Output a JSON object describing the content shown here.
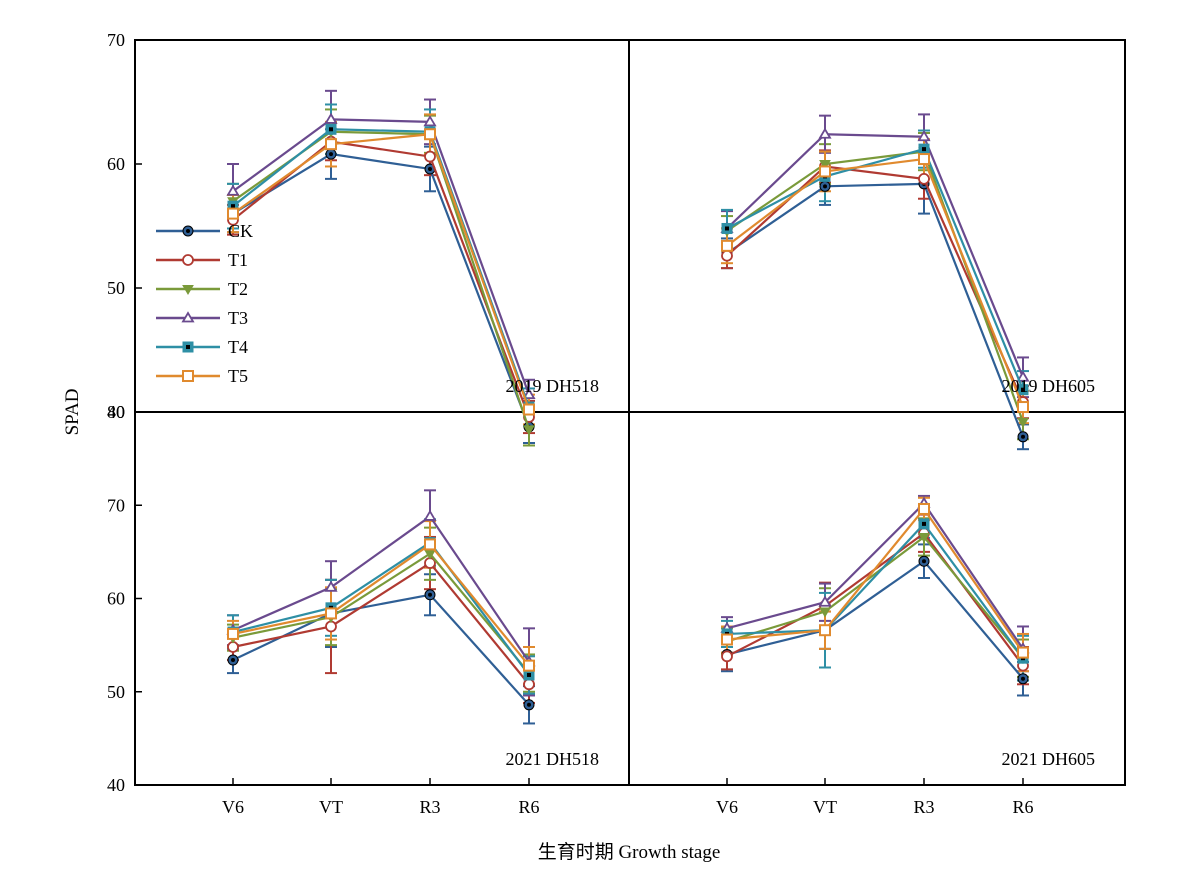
{
  "figure": {
    "ylabel": "SPAD",
    "xlabel": "生育时期 Growth stage",
    "top_y_ticks": [
      "70",
      "60",
      "50",
      "40"
    ],
    "bottom_y_ticks": [
      "80",
      "70",
      "60",
      "50",
      "40"
    ],
    "x_ticks": [
      "V6",
      "VT",
      "R3",
      "R6"
    ]
  },
  "series_styles": [
    {
      "name": "CK",
      "color": "#2f5f95",
      "marker": "dot"
    },
    {
      "name": "T1",
      "color": "#b03a32",
      "marker": "circle"
    },
    {
      "name": "T2",
      "color": "#7a9a3a",
      "marker": "triangle-down"
    },
    {
      "name": "T3",
      "color": "#6a4a8e",
      "marker": "triangle-up"
    },
    {
      "name": "T4",
      "color": "#2e8fa5",
      "marker": "square-filled"
    },
    {
      "name": "T5",
      "color": "#e08a2e",
      "marker": "square-open"
    }
  ],
  "chart_data": [
    {
      "type": "line",
      "title": "2019 DH518",
      "categories": [
        "V6",
        "VT",
        "R3",
        "R6"
      ],
      "ylim": [
        40,
        70
      ],
      "series": [
        {
          "name": "CK",
          "values": [
            56.0,
            60.8,
            59.6,
            38.8
          ],
          "errors": [
            1.5,
            2.0,
            1.8,
            1.3
          ]
        },
        {
          "name": "T1",
          "values": [
            55.5,
            61.8,
            60.6,
            39.6
          ],
          "errors": [
            1.2,
            1.5,
            1.5,
            1.3
          ]
        },
        {
          "name": "T2",
          "values": [
            57.0,
            62.6,
            62.4,
            38.6
          ],
          "errors": [
            1.4,
            1.8,
            1.5,
            1.3
          ]
        },
        {
          "name": "T3",
          "values": [
            57.8,
            63.6,
            63.4,
            41.4
          ],
          "errors": [
            2.2,
            2.3,
            1.8,
            1.2
          ]
        },
        {
          "name": "T4",
          "values": [
            56.6,
            62.8,
            62.6,
            40.4
          ],
          "errors": [
            1.8,
            2.0,
            1.8,
            1.5
          ]
        },
        {
          "name": "T5",
          "values": [
            56.0,
            61.6,
            62.4,
            40.2
          ],
          "errors": [
            1.5,
            1.8,
            1.6,
            1.2
          ]
        }
      ]
    },
    {
      "type": "line",
      "title": "2019 DH605",
      "categories": [
        "V6",
        "VT",
        "R3",
        "R6"
      ],
      "ylim": [
        40,
        70
      ],
      "series": [
        {
          "name": "CK",
          "values": [
            52.8,
            58.2,
            58.4,
            38.0
          ],
          "errors": [
            1.2,
            1.5,
            2.4,
            1.0
          ]
        },
        {
          "name": "T1",
          "values": [
            52.6,
            59.8,
            58.8,
            40.8
          ],
          "errors": [
            1.0,
            1.3,
            1.6,
            1.3
          ]
        },
        {
          "name": "T2",
          "values": [
            54.6,
            60.0,
            61.0,
            39.2
          ],
          "errors": [
            1.2,
            1.6,
            1.5,
            1.4
          ]
        },
        {
          "name": "T3",
          "values": [
            54.8,
            62.4,
            62.2,
            42.8
          ],
          "errors": [
            1.4,
            1.5,
            1.8,
            1.6
          ]
        },
        {
          "name": "T4",
          "values": [
            54.8,
            59.0,
            61.2,
            41.8
          ],
          "errors": [
            1.5,
            2.0,
            1.5,
            1.5
          ]
        },
        {
          "name": "T5",
          "values": [
            53.4,
            59.4,
            60.4,
            40.4
          ],
          "errors": [
            1.4,
            1.6,
            1.6,
            1.3
          ]
        }
      ]
    },
    {
      "type": "line",
      "title": "2021 DH518",
      "categories": [
        "V6",
        "VT",
        "R3",
        "R6"
      ],
      "ylim": [
        40,
        80
      ],
      "series": [
        {
          "name": "CK",
          "values": [
            53.4,
            58.4,
            60.4,
            48.6
          ],
          "errors": [
            1.4,
            3.6,
            2.2,
            2.0
          ]
        },
        {
          "name": "T1",
          "values": [
            54.8,
            57.0,
            63.8,
            50.8
          ],
          "errors": [
            1.4,
            5.0,
            2.8,
            2.0
          ]
        },
        {
          "name": "T2",
          "values": [
            55.8,
            58.0,
            64.8,
            52.0
          ],
          "errors": [
            1.4,
            3.0,
            2.8,
            2.0
          ]
        },
        {
          "name": "T3",
          "values": [
            56.6,
            61.2,
            68.8,
            53.2
          ],
          "errors": [
            1.6,
            2.8,
            2.8,
            3.6
          ]
        },
        {
          "name": "T4",
          "values": [
            56.4,
            59.0,
            66.0,
            51.8
          ],
          "errors": [
            1.8,
            3.0,
            2.5,
            2.0
          ]
        },
        {
          "name": "T5",
          "values": [
            56.2,
            58.4,
            65.8,
            52.8
          ],
          "errors": [
            1.4,
            2.8,
            2.5,
            2.0
          ]
        }
      ]
    },
    {
      "type": "line",
      "title": "2021 DH605",
      "categories": [
        "V6",
        "VT",
        "R3",
        "R6"
      ],
      "ylim": [
        40,
        80
      ],
      "series": [
        {
          "name": "CK",
          "values": [
            54.0,
            56.6,
            64.0,
            51.4
          ],
          "errors": [
            1.8,
            2.0,
            1.8,
            1.8
          ]
        },
        {
          "name": "T1",
          "values": [
            53.8,
            59.2,
            67.0,
            52.8
          ],
          "errors": [
            1.4,
            2.5,
            2.0,
            2.0
          ]
        },
        {
          "name": "T2",
          "values": [
            55.4,
            58.6,
            66.6,
            53.6
          ],
          "errors": [
            1.4,
            2.5,
            2.0,
            2.0
          ]
        },
        {
          "name": "T3",
          "values": [
            56.8,
            59.6,
            70.2,
            54.6
          ],
          "errors": [
            1.2,
            2.0,
            0.8,
            2.4
          ]
        },
        {
          "name": "T4",
          "values": [
            56.2,
            56.6,
            68.0,
            53.6
          ],
          "errors": [
            1.4,
            4.0,
            1.5,
            2.4
          ]
        },
        {
          "name": "T5",
          "values": [
            55.6,
            56.6,
            69.6,
            54.2
          ],
          "errors": [
            1.4,
            2.0,
            1.2,
            2.0
          ]
        }
      ]
    }
  ]
}
